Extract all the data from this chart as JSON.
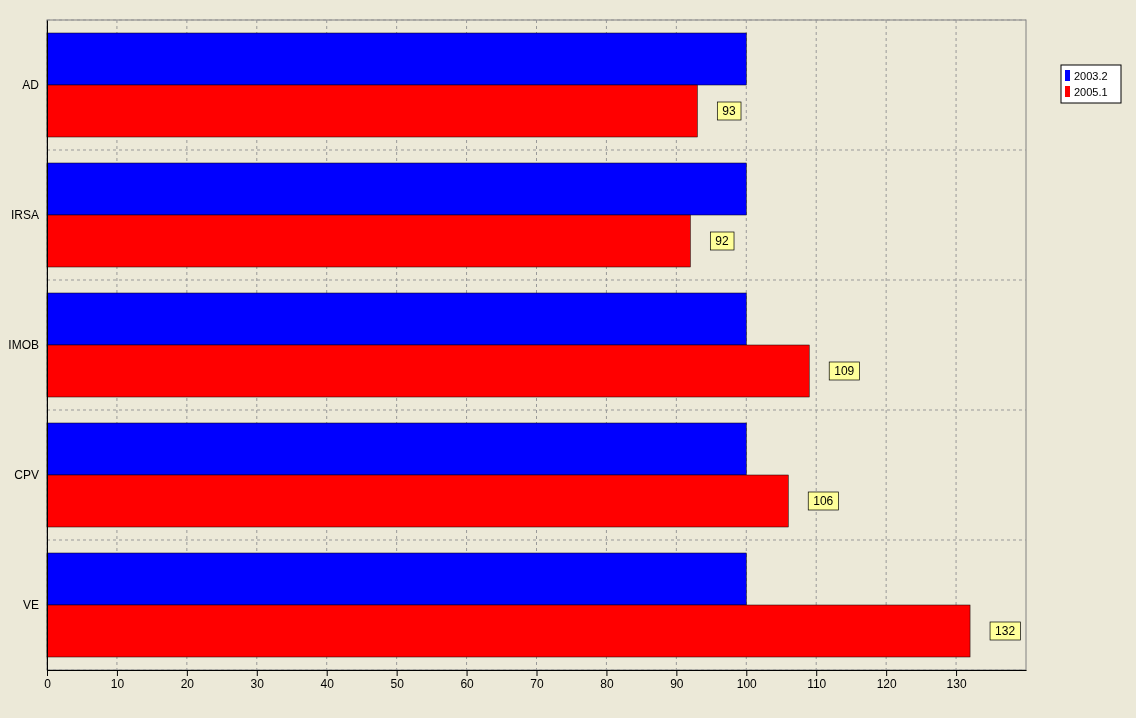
{
  "chart_data": {
    "type": "bar",
    "orientation": "horizontal",
    "categories": [
      "AD",
      "IRSA",
      "IMOB",
      "CPV",
      "VE"
    ],
    "series": [
      {
        "name": "2003.2",
        "color": "#0000ff",
        "values": [
          100,
          100,
          100,
          100,
          100
        ]
      },
      {
        "name": "2005.1",
        "color": "#ff0000",
        "values": [
          93,
          92,
          109,
          106,
          132
        ],
        "value_labels": [
          "93",
          "92",
          "109",
          "106",
          "132"
        ]
      }
    ],
    "xlim": [
      0,
      140
    ],
    "xticks": [
      0,
      10,
      20,
      30,
      40,
      50,
      60,
      70,
      80,
      90,
      100,
      110,
      120,
      130
    ],
    "grid": true,
    "legend": "top right"
  }
}
